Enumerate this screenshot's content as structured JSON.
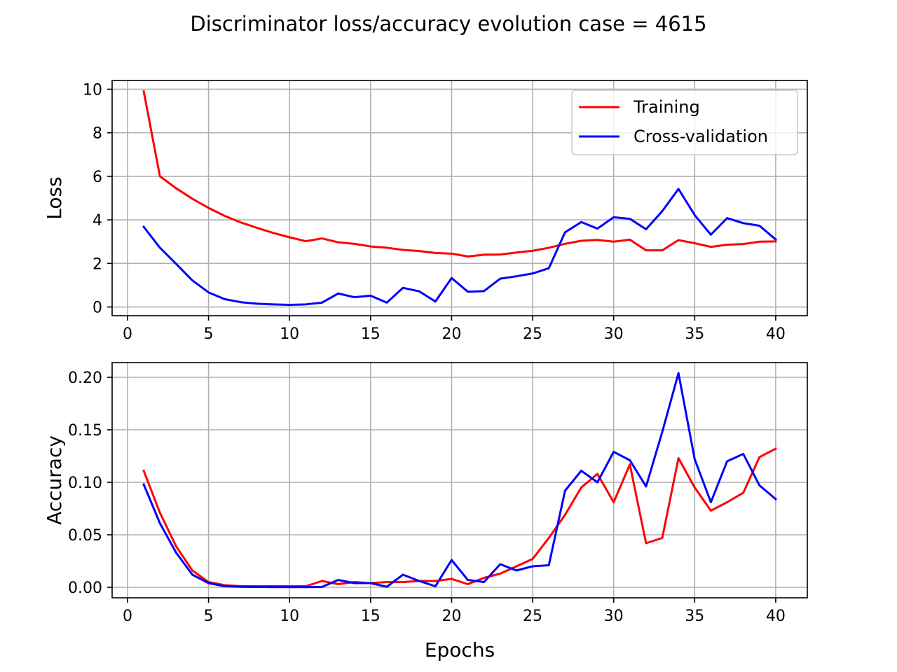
{
  "figure": {
    "title": "Discriminator loss/accuracy evolution case = 4615"
  },
  "colors": {
    "training": "#ff0000",
    "cross_validation": "#0000ff",
    "grid": "#b0b0b0",
    "axes": "#000000"
  },
  "chart_data": [
    {
      "type": "line",
      "title": "",
      "xlabel": "",
      "ylabel": "Loss",
      "xlim": [
        -0.95,
        41.95
      ],
      "ylim": [
        -0.4,
        10.4
      ],
      "xticks": [
        0,
        5,
        10,
        15,
        20,
        25,
        30,
        35,
        40
      ],
      "xtick_labels": [
        "0",
        "5",
        "10",
        "15",
        "20",
        "25",
        "30",
        "35",
        "40"
      ],
      "yticks": [
        0,
        2,
        4,
        6,
        8,
        10
      ],
      "ytick_labels": [
        "0",
        "2",
        "4",
        "6",
        "8",
        "10"
      ],
      "grid": true,
      "legend": "top-right",
      "x": [
        1,
        2,
        3,
        4,
        5,
        6,
        7,
        8,
        9,
        10,
        11,
        12,
        13,
        14,
        15,
        16,
        17,
        18,
        19,
        20,
        21,
        22,
        23,
        24,
        25,
        26,
        27,
        28,
        29,
        30,
        31,
        32,
        33,
        34,
        35,
        36,
        37,
        38,
        39,
        40
      ],
      "series": [
        {
          "name": "Training",
          "color": "#ff0000",
          "values": [
            9.9,
            6.0,
            5.45,
            4.97,
            4.55,
            4.18,
            3.88,
            3.63,
            3.4,
            3.2,
            3.02,
            3.15,
            2.97,
            2.9,
            2.78,
            2.72,
            2.62,
            2.57,
            2.48,
            2.45,
            2.32,
            2.4,
            2.41,
            2.5,
            2.58,
            2.72,
            2.9,
            3.04,
            3.08,
            3.0,
            3.09,
            2.6,
            2.6,
            3.07,
            2.93,
            2.76,
            2.86,
            2.89,
            3.0,
            3.01
          ]
        },
        {
          "name": "Cross-validation",
          "color": "#0000ff",
          "values": [
            3.68,
            2.72,
            1.98,
            1.22,
            0.67,
            0.36,
            0.22,
            0.15,
            0.12,
            0.1,
            0.12,
            0.2,
            0.62,
            0.45,
            0.52,
            0.2,
            0.88,
            0.72,
            0.25,
            1.33,
            0.7,
            0.73,
            1.3,
            1.41,
            1.54,
            1.78,
            3.43,
            3.9,
            3.6,
            4.12,
            4.05,
            3.57,
            4.4,
            5.42,
            4.22,
            3.32,
            4.08,
            3.85,
            3.73,
            3.1
          ]
        }
      ]
    },
    {
      "type": "line",
      "title": "",
      "xlabel": "Epochs",
      "ylabel": "Accuracy",
      "xlim": [
        -0.95,
        41.95
      ],
      "ylim": [
        -0.01,
        0.214
      ],
      "xticks": [
        0,
        5,
        10,
        15,
        20,
        25,
        30,
        35,
        40
      ],
      "xtick_labels": [
        "0",
        "5",
        "10",
        "15",
        "20",
        "25",
        "30",
        "35",
        "40"
      ],
      "yticks": [
        0,
        0.05,
        0.1,
        0.15,
        0.2
      ],
      "ytick_labels": [
        "0.00",
        "0.05",
        "0.10",
        "0.15",
        "0.20"
      ],
      "grid": true,
      "legend": "none",
      "x": [
        1,
        2,
        3,
        4,
        5,
        6,
        7,
        8,
        9,
        10,
        11,
        12,
        13,
        14,
        15,
        16,
        17,
        18,
        19,
        20,
        21,
        22,
        23,
        24,
        25,
        26,
        27,
        28,
        29,
        30,
        31,
        32,
        33,
        34,
        35,
        36,
        37,
        38,
        39,
        40
      ],
      "series": [
        {
          "name": "Training",
          "color": "#ff0000",
          "values": [
            0.111,
            0.071,
            0.039,
            0.016,
            0.005,
            0.002,
            0.001,
            0.001,
            0.001,
            0.001,
            0.001,
            0.006,
            0.003,
            0.005,
            0.004,
            0.005,
            0.005,
            0.006,
            0.006,
            0.008,
            0.003,
            0.009,
            0.013,
            0.02,
            0.027,
            0.047,
            0.069,
            0.095,
            0.108,
            0.081,
            0.117,
            0.042,
            0.047,
            0.123,
            0.095,
            0.073,
            0.081,
            0.09,
            0.124,
            0.132
          ]
        },
        {
          "name": "Cross-validation",
          "color": "#0000ff",
          "values": [
            0.098,
            0.061,
            0.033,
            0.012,
            0.004,
            0.001,
            0.0005,
            0.0003,
            0.0002,
            0.0002,
            0.0002,
            0.0003,
            0.007,
            0.004,
            0.004,
            0.0005,
            0.012,
            0.006,
            0.001,
            0.026,
            0.007,
            0.005,
            0.022,
            0.016,
            0.02,
            0.021,
            0.092,
            0.111,
            0.1,
            0.129,
            0.121,
            0.096,
            0.148,
            0.204,
            0.122,
            0.081,
            0.12,
            0.127,
            0.097,
            0.084
          ]
        }
      ]
    }
  ]
}
